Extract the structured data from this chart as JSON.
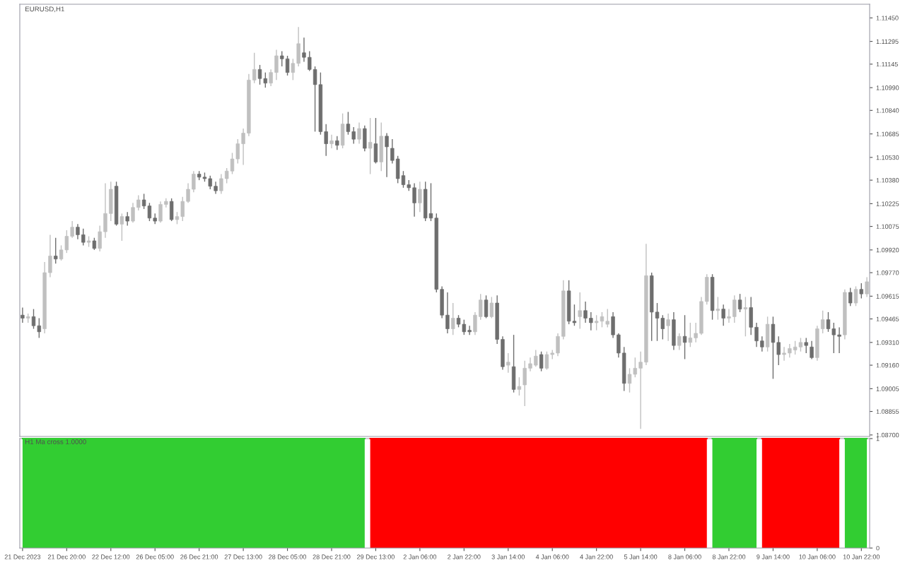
{
  "chart_data": [
    {
      "type": "candlestick",
      "title": "EURUSD,H1",
      "ohlc": [
        [
          1.0949,
          1.0954,
          1.0944,
          1.0947
        ],
        [
          1.0947,
          1.095,
          1.0944,
          1.0948
        ],
        [
          1.0948,
          1.0953,
          1.094,
          1.0942
        ],
        [
          1.0942,
          1.0947,
          1.0934,
          1.0938
        ],
        [
          1.094,
          1.0984,
          1.0937,
          1.0977
        ],
        [
          1.0977,
          1.1002,
          1.0974,
          1.0988
        ],
        [
          1.0988,
          1.1,
          1.0983,
          1.0986
        ],
        [
          1.0986,
          1.0995,
          1.0985,
          1.0992
        ],
        [
          1.0992,
          1.1005,
          1.099,
          1.1001
        ],
        [
          1.1001,
          1.1011,
          1.1,
          1.1007
        ],
        [
          1.1007,
          1.1009,
          1.0999,
          1.1002
        ],
        [
          1.1002,
          1.1006,
          1.0995,
          1.0997
        ],
        [
          1.0997,
          1.1001,
          1.0994,
          1.0998
        ],
        [
          1.0998,
          1.1,
          1.0992,
          1.0993
        ],
        [
          1.0993,
          1.1008,
          1.0991,
          1.1004
        ],
        [
          1.1004,
          1.1036,
          1.1,
          1.1016
        ],
        [
          1.1016,
          1.1037,
          1.1011,
          1.1032
        ],
        [
          1.1034,
          1.1037,
          1.1008,
          1.1009
        ],
        [
          1.1009,
          1.1016,
          1.0998,
          1.1014
        ],
        [
          1.1014,
          1.1017,
          1.1008,
          1.1011
        ],
        [
          1.1011,
          1.1023,
          1.101,
          1.102
        ],
        [
          1.102,
          1.1028,
          1.1018,
          1.1025
        ],
        [
          1.1025,
          1.1029,
          1.1019,
          1.1021
        ],
        [
          1.1021,
          1.1023,
          1.1011,
          1.1013
        ],
        [
          1.1013,
          1.1016,
          1.1009,
          1.1011
        ],
        [
          1.1011,
          1.1024,
          1.101,
          1.1022
        ],
        [
          1.1022,
          1.1026,
          1.102,
          1.1024
        ],
        [
          1.1024,
          1.1026,
          1.1011,
          1.1012
        ],
        [
          1.1012,
          1.1017,
          1.1009,
          1.1014
        ],
        [
          1.1014,
          1.1027,
          1.1011,
          1.1024
        ],
        [
          1.1024,
          1.1036,
          1.1023,
          1.1032
        ],
        [
          1.1032,
          1.1044,
          1.103,
          1.1042
        ],
        [
          1.1042,
          1.1044,
          1.1038,
          1.104
        ],
        [
          1.104,
          1.1043,
          1.1037,
          1.1039
        ],
        [
          1.1039,
          1.1041,
          1.1032,
          1.1034
        ],
        [
          1.1034,
          1.1037,
          1.1029,
          1.1031
        ],
        [
          1.1031,
          1.1042,
          1.1029,
          1.1039
        ],
        [
          1.1039,
          1.1046,
          1.1036,
          1.1044
        ],
        [
          1.1044,
          1.1056,
          1.1042,
          1.1052
        ],
        [
          1.1052,
          1.1065,
          1.1049,
          1.1062
        ],
        [
          1.1062,
          1.1072,
          1.1048,
          1.1069
        ],
        [
          1.1069,
          1.1108,
          1.1067,
          1.1104
        ],
        [
          1.1104,
          1.1122,
          1.1102,
          1.1111
        ],
        [
          1.1111,
          1.1114,
          1.1101,
          1.1105
        ],
        [
          1.1105,
          1.1109,
          1.1099,
          1.1102
        ],
        [
          1.1102,
          1.1111,
          1.11,
          1.1109
        ],
        [
          1.1109,
          1.1124,
          1.1104,
          1.112
        ],
        [
          1.112,
          1.1123,
          1.1113,
          1.1118
        ],
        [
          1.1118,
          1.112,
          1.1107,
          1.1109
        ],
        [
          1.1109,
          1.1118,
          1.1104,
          1.1115
        ],
        [
          1.1115,
          1.1139,
          1.1113,
          1.1128
        ],
        [
          1.1122,
          1.1132,
          1.1116,
          1.1119
        ],
        [
          1.1119,
          1.1123,
          1.111,
          1.1111
        ],
        [
          1.1111,
          1.1113,
          1.107,
          1.1101
        ],
        [
          1.1101,
          1.1109,
          1.1068,
          1.107
        ],
        [
          1.107,
          1.1075,
          1.1054,
          1.1062
        ],
        [
          1.1062,
          1.1068,
          1.1059,
          1.1064
        ],
        [
          1.1064,
          1.1067,
          1.1058,
          1.1061
        ],
        [
          1.1061,
          1.1082,
          1.1059,
          1.1075
        ],
        [
          1.1075,
          1.1083,
          1.1068,
          1.107
        ],
        [
          1.107,
          1.1073,
          1.1062,
          1.1065
        ],
        [
          1.1065,
          1.1076,
          1.1062,
          1.1072
        ],
        [
          1.1072,
          1.1074,
          1.1057,
          1.1059
        ],
        [
          1.1059,
          1.1079,
          1.1042,
          1.1063
        ],
        [
          1.1062,
          1.1079,
          1.1049,
          1.105
        ],
        [
          1.105,
          1.1076,
          1.1044,
          1.1067
        ],
        [
          1.1067,
          1.1069,
          1.104,
          1.106
        ],
        [
          1.1059,
          1.1065,
          1.1049,
          1.1051
        ],
        [
          1.1052,
          1.1054,
          1.1036,
          1.1039
        ],
        [
          1.1041,
          1.1044,
          1.1033,
          1.1035
        ],
        [
          1.1035,
          1.1038,
          1.1031,
          1.1033
        ],
        [
          1.1033,
          1.1036,
          1.1014,
          1.1023
        ],
        [
          1.1023,
          1.1037,
          1.1017,
          1.1032
        ],
        [
          1.1032,
          1.1037,
          1.1011,
          1.1013
        ],
        [
          1.1016,
          1.1036,
          1.1011,
          1.1013
        ],
        [
          1.1013,
          1.1016,
          1.0964,
          1.0966
        ],
        [
          1.0966,
          1.0968,
          1.0947,
          1.0949
        ],
        [
          1.0949,
          1.0964,
          1.0937,
          1.094
        ],
        [
          1.094,
          1.0957,
          1.0936,
          1.0947
        ],
        [
          1.0947,
          1.0949,
          1.0941,
          1.0943
        ],
        [
          1.0943,
          1.0946,
          1.0936,
          1.0938
        ],
        [
          1.0939,
          1.0942,
          1.0936,
          1.0938
        ],
        [
          1.0938,
          1.0951,
          1.0936,
          1.0949
        ],
        [
          1.0948,
          1.0963,
          1.0946,
          1.0959
        ],
        [
          1.0959,
          1.0962,
          1.0947,
          1.0948
        ],
        [
          1.0948,
          1.0961,
          1.0947,
          1.0957
        ],
        [
          1.0957,
          1.0962,
          1.093,
          1.0933
        ],
        [
          1.0933,
          1.0935,
          1.0913,
          1.0915
        ],
        [
          1.0916,
          1.0924,
          1.0911,
          1.0918
        ],
        [
          1.0915,
          1.0936,
          1.0898,
          1.09
        ],
        [
          1.09,
          1.0908,
          1.0896,
          1.0902
        ],
        [
          1.0903,
          1.0919,
          1.0889,
          1.0914
        ],
        [
          1.0914,
          1.0921,
          1.0912,
          1.0917
        ],
        [
          1.0916,
          1.0926,
          1.0915,
          1.0922
        ],
        [
          1.0923,
          1.0925,
          1.0912,
          1.0914
        ],
        [
          1.0914,
          1.0925,
          1.0913,
          1.0923
        ],
        [
          1.0923,
          1.0926,
          1.092,
          1.0924
        ],
        [
          1.0924,
          1.0937,
          1.0922,
          1.0935
        ],
        [
          1.0935,
          1.0972,
          1.0933,
          1.0965
        ],
        [
          1.0965,
          1.0972,
          1.0943,
          1.0945
        ],
        [
          1.0945,
          1.0956,
          1.0942,
          1.0944
        ],
        [
          1.0948,
          1.0964,
          1.094,
          1.0952
        ],
        [
          1.0952,
          1.0958,
          1.0944,
          1.0947
        ],
        [
          1.0947,
          1.0951,
          1.0939,
          1.0944
        ],
        [
          1.0944,
          1.0949,
          1.0939,
          1.0945
        ],
        [
          1.0945,
          1.0951,
          1.0941,
          1.0948
        ],
        [
          1.0943,
          1.0953,
          1.0941,
          1.0945
        ],
        [
          1.0948,
          1.0951,
          1.0934,
          1.0936
        ],
        [
          1.0936,
          1.0937,
          1.0921,
          1.0924
        ],
        [
          1.0924,
          1.0928,
          1.0899,
          1.0904
        ],
        [
          1.0904,
          1.0914,
          1.0898,
          1.091
        ],
        [
          1.091,
          1.0921,
          1.0908,
          1.0914
        ],
        [
          1.0914,
          1.0925,
          1.0874,
          1.0918
        ],
        [
          1.0918,
          1.0996,
          1.0916,
          1.0975
        ],
        [
          1.0975,
          1.0977,
          1.0932,
          1.0951
        ],
        [
          1.0951,
          1.0957,
          1.0932,
          1.0947
        ],
        [
          1.0947,
          1.0949,
          1.0933,
          1.094
        ],
        [
          1.0942,
          1.095,
          1.0932,
          1.0946
        ],
        [
          1.0946,
          1.0951,
          1.0926,
          1.0929
        ],
        [
          1.0929,
          1.0937,
          1.0926,
          1.0935
        ],
        [
          1.0935,
          1.0949,
          1.092,
          1.0931
        ],
        [
          1.0931,
          1.0944,
          1.0928,
          1.0934
        ],
        [
          1.0934,
          1.0944,
          1.0931,
          1.0937
        ],
        [
          1.0937,
          1.0961,
          1.0936,
          1.0958
        ],
        [
          1.0958,
          1.0976,
          1.0956,
          1.0974
        ],
        [
          1.0974,
          1.0976,
          1.0946,
          1.0952
        ],
        [
          1.0952,
          1.0961,
          1.0946,
          1.0953
        ],
        [
          1.0953,
          1.0956,
          1.0942,
          1.0947
        ],
        [
          1.0947,
          1.0953,
          1.0944,
          1.0948
        ],
        [
          1.0948,
          1.0962,
          1.0944,
          1.0959
        ],
        [
          1.0959,
          1.0963,
          1.0951,
          1.0953
        ],
        [
          1.0953,
          1.0961,
          1.0935,
          1.0954
        ],
        [
          1.0954,
          1.0961,
          1.0936,
          1.0941
        ],
        [
          1.0941,
          1.0944,
          1.0928,
          1.0932
        ],
        [
          1.0932,
          1.0935,
          1.0925,
          1.0928
        ],
        [
          1.0928,
          1.0948,
          1.0925,
          1.0943
        ],
        [
          1.0943,
          1.0948,
          1.0907,
          1.0931
        ],
        [
          1.0931,
          1.0935,
          1.0916,
          1.0923
        ],
        [
          1.0923,
          1.0928,
          1.0919,
          1.0924
        ],
        [
          1.0924,
          1.093,
          1.0921,
          1.0927
        ],
        [
          1.0926,
          1.0932,
          1.0923,
          1.0928
        ],
        [
          1.0928,
          1.0934,
          1.0925,
          1.0931
        ],
        [
          1.0931,
          1.0934,
          1.0924,
          1.0929
        ],
        [
          1.0928,
          1.0932,
          1.092,
          1.0921
        ],
        [
          1.0921,
          1.0942,
          1.0919,
          1.094
        ],
        [
          1.094,
          1.0952,
          1.0937,
          1.0946
        ],
        [
          1.0946,
          1.0951,
          1.0938,
          1.094
        ],
        [
          1.094,
          1.0944,
          1.0924,
          1.0936
        ],
        [
          1.0936,
          1.0941,
          1.0924,
          1.0935
        ],
        [
          1.0936,
          1.0966,
          1.0933,
          1.0964
        ],
        [
          1.0964,
          1.0967,
          1.0955,
          1.0957
        ],
        [
          1.0957,
          1.0968,
          1.0955,
          1.0966
        ],
        [
          1.0966,
          1.097,
          1.096,
          1.0963
        ],
        [
          1.0963,
          1.0974,
          1.0961,
          1.0971
        ]
      ],
      "colors": [
        "#6e6e6e",
        "#c0c0c0",
        "#6e6e6e",
        "#6e6e6e",
        "#c0c0c0",
        "#c0c0c0",
        "#6e6e6e",
        "#c0c0c0",
        "#c0c0c0",
        "#c0c0c0",
        "#6e6e6e",
        "#6e6e6e",
        "#c0c0c0",
        "#6e6e6e",
        "#c0c0c0",
        "#c0c0c0",
        "#c0c0c0",
        "#6e6e6e",
        "#c0c0c0",
        "#6e6e6e",
        "#c0c0c0",
        "#c0c0c0",
        "#6e6e6e",
        "#6e6e6e",
        "#6e6e6e",
        "#c0c0c0",
        "#c0c0c0",
        "#6e6e6e",
        "#c0c0c0",
        "#c0c0c0",
        "#c0c0c0",
        "#c0c0c0",
        "#6e6e6e",
        "#6e6e6e",
        "#6e6e6e",
        "#6e6e6e",
        "#c0c0c0",
        "#c0c0c0",
        "#c0c0c0",
        "#c0c0c0",
        "#c0c0c0",
        "#c0c0c0",
        "#c0c0c0",
        "#6e6e6e",
        "#6e6e6e",
        "#c0c0c0",
        "#c0c0c0",
        "#6e6e6e",
        "#6e6e6e",
        "#c0c0c0",
        "#c0c0c0",
        "#6e6e6e",
        "#6e6e6e",
        "#6e6e6e",
        "#6e6e6e",
        "#6e6e6e",
        "#c0c0c0",
        "#6e6e6e",
        "#c0c0c0",
        "#6e6e6e",
        "#6e6e6e",
        "#c0c0c0",
        "#6e6e6e",
        "#c0c0c0",
        "#6e6e6e",
        "#c0c0c0",
        "#6e6e6e",
        "#6e6e6e",
        "#6e6e6e",
        "#6e6e6e",
        "#6e6e6e",
        "#6e6e6e",
        "#c0c0c0",
        "#6e6e6e",
        "#6e6e6e",
        "#6e6e6e",
        "#6e6e6e",
        "#6e6e6e",
        "#c0c0c0",
        "#6e6e6e",
        "#6e6e6e",
        "#6e6e6e",
        "#c0c0c0",
        "#c0c0c0",
        "#6e6e6e",
        "#c0c0c0",
        "#6e6e6e",
        "#6e6e6e",
        "#c0c0c0",
        "#6e6e6e",
        "#c0c0c0",
        "#c0c0c0",
        "#c0c0c0",
        "#c0c0c0",
        "#6e6e6e",
        "#c0c0c0",
        "#c0c0c0",
        "#c0c0c0",
        "#c0c0c0",
        "#6e6e6e",
        "#6e6e6e",
        "#c0c0c0",
        "#6e6e6e",
        "#6e6e6e",
        "#c0c0c0",
        "#c0c0c0",
        "#c0c0c0",
        "#6e6e6e",
        "#6e6e6e",
        "#6e6e6e",
        "#c0c0c0",
        "#c0c0c0",
        "#c0c0c0",
        "#c0c0c0",
        "#6e6e6e",
        "#6e6e6e",
        "#6e6e6e",
        "#c0c0c0",
        "#6e6e6e",
        "#c0c0c0",
        "#6e6e6e",
        "#c0c0c0",
        "#c0c0c0",
        "#c0c0c0",
        "#c0c0c0",
        "#6e6e6e",
        "#c0c0c0",
        "#6e6e6e",
        "#c0c0c0",
        "#c0c0c0",
        "#6e6e6e",
        "#c0c0c0",
        "#6e6e6e",
        "#6e6e6e",
        "#6e6e6e",
        "#c0c0c0",
        "#6e6e6e",
        "#6e6e6e",
        "#c0c0c0",
        "#c0c0c0",
        "#c0c0c0",
        "#c0c0c0",
        "#6e6e6e",
        "#6e6e6e",
        "#c0c0c0",
        "#c0c0c0",
        "#6e6e6e",
        "#6e6e6e",
        "#6e6e6e",
        "#c0c0c0",
        "#6e6e6e",
        "#c0c0c0",
        "#6e6e6e",
        "#c0c0c0"
      ],
      "ylim": [
        1.0869,
        1.1154
      ],
      "yticks": [
        {
          "value": 1.1145,
          "label": "1.11450"
        },
        {
          "value": 1.11295,
          "label": "1.11295"
        },
        {
          "value": 1.11145,
          "label": "1.11145"
        },
        {
          "value": 1.1099,
          "label": "1.10990"
        },
        {
          "value": 1.1084,
          "label": "1.10840"
        },
        {
          "value": 1.10685,
          "label": "1.10685"
        },
        {
          "value": 1.1053,
          "label": "1.10530"
        },
        {
          "value": 1.1038,
          "label": "1.10380"
        },
        {
          "value": 1.10225,
          "label": "1.10225"
        },
        {
          "value": 1.10075,
          "label": "1.10075"
        },
        {
          "value": 1.0992,
          "label": "1.09920"
        },
        {
          "value": 1.0977,
          "label": "1.09770"
        },
        {
          "value": 1.09615,
          "label": "1.09615"
        },
        {
          "value": 1.09465,
          "label": "1.09465"
        },
        {
          "value": 1.0931,
          "label": "1.09310"
        },
        {
          "value": 1.0916,
          "label": "1.09160"
        },
        {
          "value": 1.09005,
          "label": "1.09005"
        },
        {
          "value": 1.08855,
          "label": "1.08855"
        },
        {
          "value": 1.087,
          "label": "1.08700"
        }
      ],
      "tick_labels": "y"
    },
    {
      "type": "area",
      "title": "H1 Ma cross 1.0000",
      "categories": [
        "21 Dec 2023",
        null,
        null,
        null,
        null,
        null,
        null,
        null,
        "21 Dec 20:00",
        null,
        null,
        null,
        null,
        null,
        null,
        null,
        "22 Dec 12:00",
        null,
        null,
        null,
        null,
        null,
        null,
        null,
        "26 Dec 05:00",
        null,
        null,
        null,
        null,
        null,
        null,
        null,
        "26 Dec 21:00",
        null,
        null,
        null,
        null,
        null,
        null,
        null,
        "27 Dec 13:00",
        null,
        null,
        null,
        null,
        null,
        null,
        null,
        "28 Dec 05:00",
        null,
        null,
        null,
        null,
        null,
        null,
        null,
        "28 Dec 21:00",
        null,
        null,
        null,
        null,
        null,
        null,
        null,
        "29 Dec 13:00",
        null,
        null,
        null,
        null,
        null,
        null,
        null,
        "2 Jan 06:00",
        null,
        null,
        null,
        null,
        null,
        null,
        null,
        "2 Jan 22:00",
        null,
        null,
        null,
        null,
        null,
        null,
        null,
        "3 Jan 14:00",
        null,
        null,
        null,
        null,
        null,
        null,
        null,
        "4 Jan 06:00",
        null,
        null,
        null,
        null,
        null,
        null,
        null,
        "4 Jan 22:00",
        null,
        null,
        null,
        null,
        null,
        null,
        null,
        "5 Jan 14:00",
        null,
        null,
        null,
        null,
        null,
        null,
        null,
        "8 Jan 06:00",
        null,
        null,
        null,
        null,
        null,
        null,
        null,
        "8 Jan 22:00",
        null,
        null,
        null,
        null,
        null,
        null,
        null,
        "9 Jan 14:00",
        null,
        null,
        null,
        null,
        null,
        null,
        null,
        "10 Jan 06:00",
        null,
        null,
        null,
        null,
        null,
        null,
        null,
        "10 Jan 22:00",
        null
      ],
      "series": [
        {
          "color": "#32cd32",
          "values": [
            1,
            1,
            1,
            1,
            1,
            1,
            1,
            1,
            1,
            1,
            1,
            1,
            1,
            1,
            1,
            1,
            1,
            1,
            1,
            1,
            1,
            1,
            1,
            1,
            1,
            1,
            1,
            1,
            1,
            1,
            1,
            1,
            1,
            1,
            1,
            1,
            1,
            1,
            1,
            1,
            1,
            1,
            1,
            1,
            1,
            1,
            1,
            1,
            1,
            1,
            1,
            1,
            1,
            1,
            1,
            1,
            1,
            1,
            1,
            1,
            1,
            1,
            1,
            null,
            null,
            null,
            null,
            null,
            null,
            null,
            null,
            null,
            null,
            null,
            null,
            null,
            null,
            null,
            null,
            null,
            null,
            null,
            null,
            null,
            null,
            null,
            null,
            null,
            null,
            null,
            null,
            null,
            null,
            null,
            null,
            null,
            null,
            null,
            null,
            null,
            null,
            null,
            null,
            null,
            null,
            null,
            null,
            null,
            null,
            null,
            null,
            null,
            null,
            null,
            null,
            null,
            null,
            null,
            null,
            null,
            null,
            null,
            null,
            null,
            null,
            1,
            1,
            1,
            1,
            1,
            1,
            1,
            1,
            1,
            null,
            null,
            null,
            null,
            null,
            null,
            null,
            null,
            null,
            null,
            null,
            null,
            null,
            null,
            null,
            1,
            1,
            1,
            1,
            1
          ]
        },
        {
          "color": "#ff0000",
          "values": [
            null,
            null,
            null,
            null,
            null,
            null,
            null,
            null,
            null,
            null,
            null,
            null,
            null,
            null,
            null,
            null,
            null,
            null,
            null,
            null,
            null,
            null,
            null,
            null,
            null,
            null,
            null,
            null,
            null,
            null,
            null,
            null,
            null,
            null,
            null,
            null,
            null,
            null,
            null,
            null,
            null,
            null,
            null,
            null,
            null,
            null,
            null,
            null,
            null,
            null,
            null,
            null,
            null,
            null,
            null,
            null,
            null,
            null,
            null,
            null,
            null,
            null,
            null,
            1,
            1,
            1,
            1,
            1,
            1,
            1,
            1,
            1,
            1,
            1,
            1,
            1,
            1,
            1,
            1,
            1,
            1,
            1,
            1,
            1,
            1,
            1,
            1,
            1,
            1,
            1,
            1,
            1,
            1,
            1,
            1,
            1,
            1,
            1,
            1,
            1,
            1,
            1,
            1,
            1,
            1,
            1,
            1,
            1,
            1,
            1,
            1,
            1,
            1,
            1,
            1,
            1,
            1,
            1,
            1,
            1,
            1,
            1,
            1,
            1,
            1,
            null,
            null,
            null,
            null,
            null,
            null,
            null,
            null,
            null,
            1,
            1,
            1,
            1,
            1,
            1,
            1,
            1,
            1,
            1,
            1,
            1,
            1,
            1,
            1,
            null,
            null,
            null,
            null,
            null
          ]
        }
      ],
      "ylim": [
        0,
        1
      ],
      "yticks": [
        0,
        1
      ]
    }
  ]
}
